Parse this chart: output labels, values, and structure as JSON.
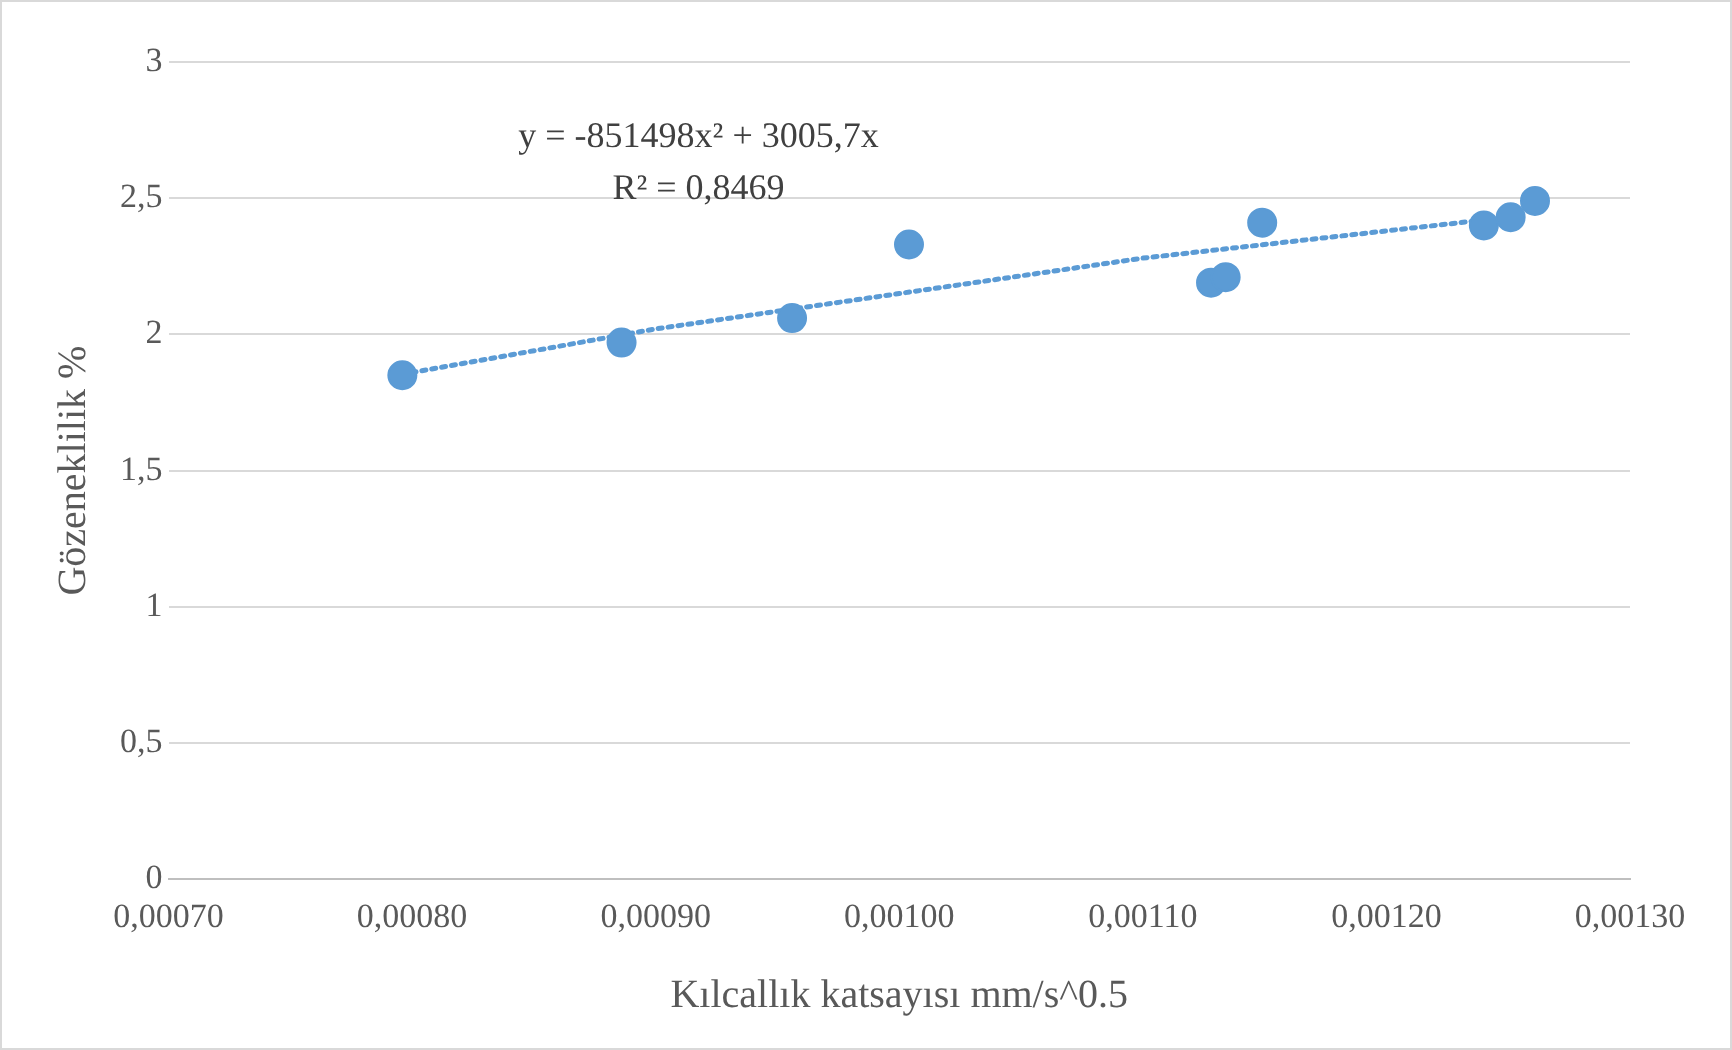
{
  "chart_data": {
    "type": "scatter",
    "xlabel": "Kılcallık katsayısı mm/s^0.5",
    "ylabel": "Gözeneklilik %",
    "annotations": [
      "y = -851498x² + 3005,7x",
      "R² = 0,8469"
    ],
    "series": [
      {
        "color": "#5b9bd5",
        "marker": "circle",
        "x": [
          0.000796,
          0.000886,
          0.000956,
          0.001004,
          0.001128,
          0.001134,
          0.001149,
          0.00124,
          0.001251,
          0.001261
        ],
        "values": [
          1.85,
          1.97,
          2.06,
          2.33,
          2.19,
          2.21,
          2.41,
          2.4,
          2.43,
          2.49
        ]
      },
      {
        "type": "line",
        "color": "#5b9bd5",
        "marker": "none",
        "line_style": "dotted",
        "x": [
          0.0008,
          0.0009,
          0.001,
          0.0011,
          0.00124
        ],
        "values": [
          1.86,
          2.02,
          2.15,
          2.28,
          2.42
        ]
      }
    ],
    "xlim": [
      0.0007,
      0.0013
    ],
    "xticks": [
      {
        "value": 0.0007,
        "label": "0,00070"
      },
      {
        "value": 0.0008,
        "label": "0,00080"
      },
      {
        "value": 0.0009,
        "label": "0,00090"
      },
      {
        "value": 0.001,
        "label": "0,00100"
      },
      {
        "value": 0.0011,
        "label": "0,00110"
      },
      {
        "value": 0.0012,
        "label": "0,00120"
      },
      {
        "value": 0.0013,
        "label": "0,00130"
      }
    ],
    "ylim": [
      0,
      3
    ],
    "yticks": [
      0,
      {
        "value": 0.5,
        "label": "0,5"
      },
      1,
      {
        "value": 1.5,
        "label": "1,5"
      },
      2,
      {
        "value": 2.5,
        "label": "2,5"
      },
      3
    ],
    "grid": "y",
    "legend": false
  }
}
